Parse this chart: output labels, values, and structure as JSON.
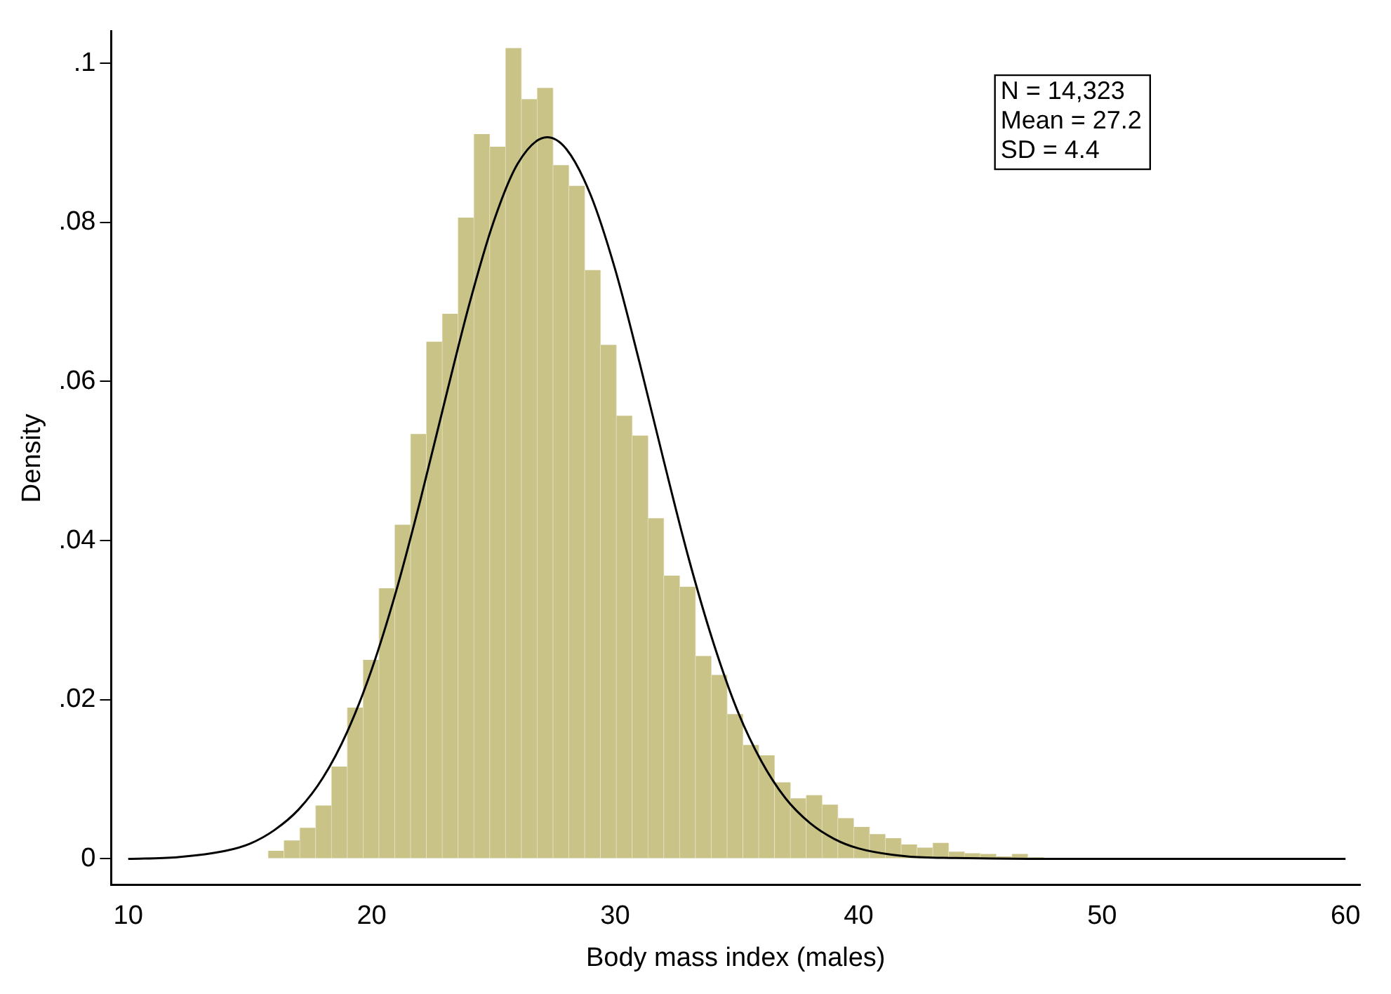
{
  "chart_data": {
    "type": "histogram",
    "xlabel": "Body mass index (males)",
    "ylabel": "Density",
    "bins": [
      15.75,
      16.4,
      17.05,
      17.7,
      18.35,
      19,
      19.65,
      20.3,
      20.95,
      21.6,
      22.25,
      22.9,
      23.55,
      24.2,
      24.85,
      25.5,
      26.15,
      26.8,
      27.45,
      28.1,
      28.75,
      29.4,
      30.05,
      30.7,
      31.35,
      32,
      32.65,
      33.3,
      33.95,
      34.6,
      35.25,
      35.9,
      36.55,
      37.2,
      37.85,
      38.5,
      39.15,
      39.8,
      40.45,
      41.1,
      41.75,
      42.4,
      43.05,
      43.7,
      44.35,
      45,
      45.65,
      46.3,
      46.95,
      47.6,
      48.25
    ],
    "values": [
      0.001,
      0.0023,
      0.0039,
      0.0067,
      0.0116,
      0.019,
      0.025,
      0.034,
      0.042,
      0.0534,
      0.065,
      0.0685,
      0.0806,
      0.0911,
      0.0895,
      0.1019,
      0.0955,
      0.0969,
      0.0872,
      0.0846,
      0.074,
      0.0646,
      0.0557,
      0.0532,
      0.0428,
      0.0356,
      0.0342,
      0.0255,
      0.0231,
      0.0182,
      0.0143,
      0.013,
      0.0096,
      0.0076,
      0.008,
      0.0068,
      0.0051,
      0.004,
      0.0031,
      0.0026,
      0.0018,
      0.0014,
      0.002,
      0.0009,
      0.0007,
      0.0006,
      0.0003,
      0.0006,
      0.0002,
      0.0001
    ],
    "color": "#c9c387",
    "series": [
      {
        "type": "line",
        "color": "#000000",
        "x": [
          10,
          12,
          14,
          15,
          16,
          17,
          18,
          19,
          20,
          21,
          22,
          23,
          24,
          25,
          26,
          27.2,
          28,
          29,
          30,
          31,
          32,
          33,
          34,
          35,
          36,
          37,
          38,
          39,
          40,
          42,
          44,
          47,
          50,
          60
        ],
        "values": [
          0,
          0.0002,
          0.001,
          0.0019,
          0.0036,
          0.0062,
          0.0102,
          0.016,
          0.0238,
          0.0336,
          0.0451,
          0.0575,
          0.0696,
          0.08,
          0.0874,
          0.0907,
          0.0892,
          0.0834,
          0.0741,
          0.0624,
          0.05,
          0.038,
          0.0275,
          0.0188,
          0.0123,
          0.0076,
          0.0045,
          0.0025,
          0.0013,
          0.0003,
          0.0001,
          0,
          0,
          0
        ]
      }
    ],
    "xlim": [
      9.3,
      60.6
    ],
    "ylim": [
      -0.0033,
      0.104
    ],
    "xticks": [
      10,
      20,
      30,
      40,
      50,
      60
    ],
    "yticks": [
      0,
      {
        "value": 0.02,
        "label": ".02"
      },
      {
        "value": 0.04,
        "label": ".04"
      },
      {
        "value": 0.06,
        "label": ".06"
      },
      {
        "value": 0.08,
        "label": ".08"
      },
      {
        "value": 0.1,
        "label": ".1"
      }
    ],
    "grid": false,
    "legend": false,
    "marker": "none",
    "line_style": "solid",
    "annotations": [
      "N = 14,323",
      "Mean = 27.2",
      "SD = 4.4"
    ]
  }
}
